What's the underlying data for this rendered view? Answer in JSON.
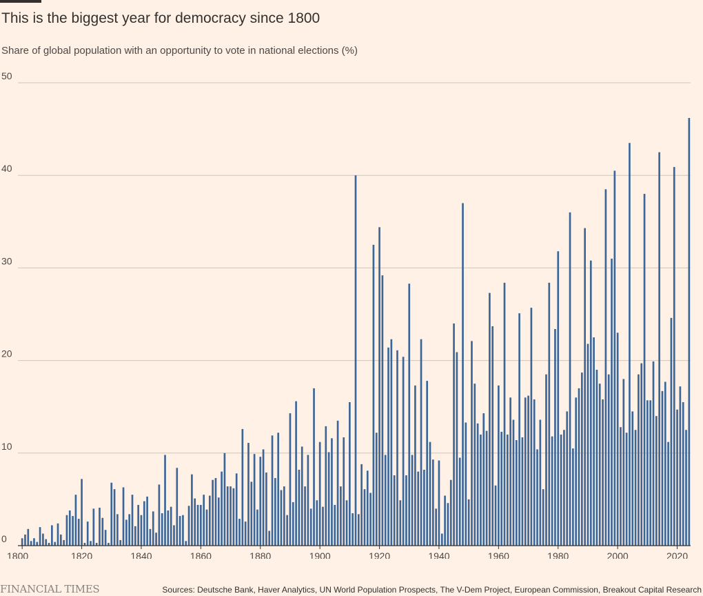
{
  "page": {
    "title": "This is the biggest year for democracy since 1800",
    "subtitle": "Share of global population with an opportunity to vote in national elections (%)",
    "brand": "FINANCIAL TIMES",
    "source": "Sources: Deutsche Bank, Haver Analytics, UN World Population Prospects, The V-Dem Project, European Commission, Breakout Capital Research"
  },
  "colors": {
    "background": "#FFF1E5",
    "bar": "#3D6698",
    "gridline": "#CEC6B9",
    "axis": "#33302E",
    "text": "#33302E"
  },
  "chart_data": {
    "type": "bar",
    "title": "This is the biggest year for democracy since 1800",
    "subtitle": "Share of global population with an opportunity to vote in national elections (%)",
    "xlabel": "",
    "ylabel": "",
    "x_start": 1800,
    "x_end": 2024,
    "xlim": [
      1800,
      2024
    ],
    "ylim": [
      0,
      50
    ],
    "y_ticks": [
      "0",
      "10",
      "20",
      "30",
      "40",
      "50"
    ],
    "x_ticks": [
      "1800",
      "1820",
      "1840",
      "1860",
      "1880",
      "1900",
      "1920",
      "1940",
      "1960",
      "1980",
      "2000",
      "2020"
    ],
    "grid": true,
    "legend": "none",
    "values": [
      0.8,
      1.2,
      1.8,
      0.5,
      0.8,
      0.4,
      2.0,
      1.3,
      0.7,
      0.3,
      2.2,
      0.4,
      2.4,
      1.2,
      0.6,
      3.3,
      3.8,
      3.2,
      5.5,
      2.9,
      7.2,
      0.3,
      2.6,
      0.5,
      4.0,
      0.3,
      4.1,
      3.0,
      1.7,
      0.3,
      6.8,
      6.1,
      3.4,
      0.6,
      6.3,
      2.8,
      3.4,
      5.5,
      2.1,
      4.4,
      3.3,
      4.8,
      5.3,
      1.8,
      3.7,
      1.4,
      6.6,
      3.5,
      9.8,
      3.8,
      4.2,
      2.2,
      8.4,
      3.2,
      3.3,
      0.5,
      4.3,
      7.7,
      5.1,
      4.4,
      4.4,
      5.5,
      3.9,
      5.4,
      7.1,
      7.3,
      5.2,
      8.0,
      10.0,
      6.4,
      6.4,
      6.2,
      7.8,
      2.9,
      12.6,
      2.6,
      11.1,
      6.9,
      9.9,
      3.9,
      9.6,
      10.4,
      7.9,
      1.6,
      11.9,
      7.3,
      12.2,
      6.0,
      6.4,
      3.3,
      14.3,
      4.7,
      15.6,
      8.2,
      10.7,
      6.4,
      9.8,
      4.0,
      17.0,
      4.9,
      11.2,
      4.2,
      12.9,
      10.1,
      11.6,
      4.4,
      13.5,
      6.4,
      11.7,
      4.9,
      15.5,
      3.5,
      40.0,
      3.4,
      8.8,
      6.1,
      8.1,
      5.7,
      32.5,
      12.2,
      34.4,
      29.2,
      9.8,
      21.4,
      22.3,
      7.6,
      21.1,
      4.9,
      20.4,
      7.6,
      28.3,
      9.8,
      17.3,
      8.0,
      22.3,
      8.2,
      17.8,
      11.2,
      9.3,
      4.0,
      9.2,
      1.3,
      5.4,
      4.6,
      7.1,
      24.0,
      20.9,
      9.5,
      37.0,
      13.3,
      5.0,
      22.1,
      17.5,
      13.2,
      12.0,
      14.3,
      12.4,
      27.3,
      23.7,
      6.5,
      17.3,
      12.3,
      28.4,
      12.0,
      16.0,
      13.6,
      11.4,
      25.1,
      11.7,
      16.0,
      16.2,
      25.7,
      15.8,
      10.4,
      13.6,
      6.1,
      18.5,
      28.4,
      11.8,
      23.4,
      31.8,
      12.0,
      12.5,
      14.5,
      36.0,
      10.5,
      16.0,
      17.0,
      18.7,
      34.3,
      21.8,
      30.8,
      22.5,
      19.0,
      17.5,
      15.8,
      38.5,
      18.5,
      31.0,
      40.5,
      23.0,
      12.8,
      18.0,
      12.2,
      43.5,
      14.5,
      12.5,
      18.5,
      19.7,
      38.0,
      15.7,
      15.7,
      19.9,
      14.0,
      42.5,
      16.7,
      17.7,
      11.2,
      24.6,
      40.9,
      14.7,
      17.2,
      15.5,
      12.5,
      46.2
    ]
  }
}
